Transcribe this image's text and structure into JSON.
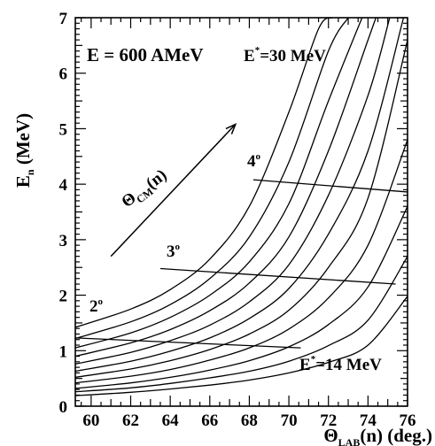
{
  "chart_data": {
    "type": "line",
    "xlabel": {
      "main": "Θ",
      "sub": "LAB",
      "tail": "(n) (deg.)"
    },
    "ylabel": {
      "main": "E",
      "sub": "n",
      "tail": " (MeV)"
    },
    "xlim": [
      59.2,
      76
    ],
    "ylim": [
      0,
      7
    ],
    "x_ticks": [
      60,
      62,
      64,
      66,
      68,
      70,
      72,
      74,
      76
    ],
    "y_ticks": [
      0,
      1,
      2,
      3,
      4,
      5,
      6,
      7
    ],
    "grid": false,
    "annotations": {
      "beam": "E = 600 AMeV",
      "estar_top": {
        "main": "E",
        "sup": "*",
        "tail": "=30 MeV"
      },
      "estar_bottom": {
        "main": "E",
        "sup": "*",
        "tail": "=14 MeV"
      },
      "theta_cm": {
        "main": "Θ",
        "sub": "CM",
        "tail": "(n)"
      },
      "angles": [
        {
          "label": "2",
          "deg": "o"
        },
        {
          "label": "3",
          "deg": "o"
        },
        {
          "label": "4",
          "deg": "o"
        }
      ]
    },
    "series": [
      {
        "x": [
          59.2,
          62,
          64,
          66,
          68,
          70,
          71.5,
          72.2
        ],
        "y": [
          1.42,
          1.75,
          2.1,
          2.65,
          3.6,
          5.3,
          6.8,
          7.0
        ]
      },
      {
        "x": [
          59.2,
          62,
          64,
          66,
          68,
          70,
          72,
          73.0
        ],
        "y": [
          1.22,
          1.52,
          1.83,
          2.3,
          3.05,
          4.4,
          6.4,
          7.0
        ]
      },
      {
        "x": [
          59.2,
          62,
          64,
          66,
          68,
          70,
          72,
          73.7
        ],
        "y": [
          1.05,
          1.32,
          1.6,
          2.0,
          2.6,
          3.65,
          5.5,
          7.0
        ]
      },
      {
        "x": [
          59.2,
          62,
          64,
          66,
          68,
          70,
          72,
          74,
          74.4
        ],
        "y": [
          0.9,
          1.14,
          1.38,
          1.72,
          2.22,
          3.05,
          4.6,
          6.6,
          7.0
        ]
      },
      {
        "x": [
          59.2,
          62,
          64,
          66,
          68,
          70,
          72,
          74,
          75.1
        ],
        "y": [
          0.76,
          0.97,
          1.18,
          1.46,
          1.88,
          2.55,
          3.8,
          5.6,
          7.0
        ]
      },
      {
        "x": [
          59.2,
          62,
          64,
          66,
          68,
          70,
          72,
          74,
          75.8
        ],
        "y": [
          0.63,
          0.81,
          0.99,
          1.23,
          1.58,
          2.12,
          3.1,
          4.6,
          7.0
        ]
      },
      {
        "x": [
          59.2,
          62,
          64,
          66,
          68,
          70,
          72,
          74,
          76
        ],
        "y": [
          0.52,
          0.67,
          0.82,
          1.02,
          1.3,
          1.73,
          2.5,
          3.75,
          6.6
        ]
      },
      {
        "x": [
          59.2,
          62,
          64,
          66,
          68,
          70,
          72,
          74,
          76
        ],
        "y": [
          0.42,
          0.54,
          0.66,
          0.83,
          1.05,
          1.39,
          1.95,
          2.9,
          4.8
        ]
      },
      {
        "x": [
          59.2,
          62,
          64,
          66,
          68,
          70,
          72,
          74,
          76
        ],
        "y": [
          0.32,
          0.42,
          0.52,
          0.65,
          0.82,
          1.07,
          1.47,
          2.15,
          3.6
        ]
      },
      {
        "x": [
          59.2,
          62,
          64,
          66,
          68,
          70,
          72,
          74,
          76
        ],
        "y": [
          0.26,
          0.33,
          0.41,
          0.51,
          0.63,
          0.81,
          1.09,
          1.55,
          2.7
        ]
      },
      {
        "x": [
          59.2,
          62,
          64,
          66,
          68,
          70,
          72,
          74,
          76
        ],
        "y": [
          0.19,
          0.25,
          0.31,
          0.38,
          0.47,
          0.6,
          0.79,
          1.1,
          1.98
        ]
      }
    ],
    "iso_angle_lines": [
      {
        "label": "2°",
        "x": [
          59.2,
          70.6
        ],
        "y": [
          1.23,
          1.05
        ]
      },
      {
        "label": "3°",
        "x": [
          63.5,
          75.4
        ],
        "y": [
          2.48,
          2.2
        ]
      },
      {
        "label": "4°",
        "x": [
          68.2,
          76
        ],
        "y": [
          4.08,
          3.86
        ]
      }
    ],
    "arrow": {
      "from": [
        61.0,
        2.7
      ],
      "to": [
        67.3,
        5.08
      ]
    }
  }
}
